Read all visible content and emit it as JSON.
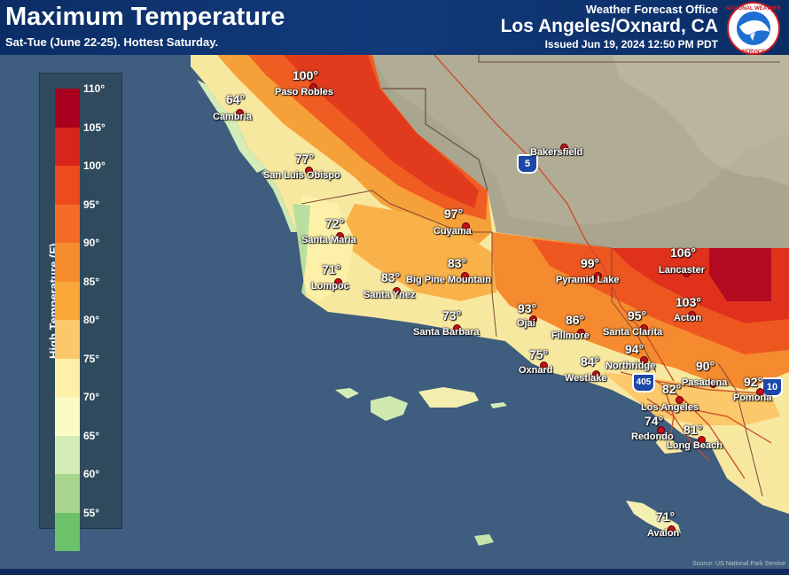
{
  "header": {
    "title": "Maximum Temperature",
    "subtitle": "Sat-Tue (June 22-25). Hottest Saturday.",
    "office_small": "Weather Forecast Office",
    "office_big": "Los Angeles/Oxnard, CA",
    "issued": "Issued Jun 19, 2024 12:50 PM PDT",
    "logo_text": "NATIONAL WEATHER SERVICE"
  },
  "legend": {
    "title": "High Temperature (F)",
    "ticks": [
      "110°",
      "105°",
      "100°",
      "95°",
      "90°",
      "85°",
      "80°",
      "75°",
      "70°",
      "65°",
      "60°",
      "55°"
    ],
    "colors": [
      "#a8001e",
      "#d9241c",
      "#ee4a1c",
      "#f46c28",
      "#f78c2c",
      "#f9a93a",
      "#fbc86a",
      "#fdf0a8",
      "#fbfbc6",
      "#d4ecb8",
      "#a8d68e",
      "#6cc26a"
    ]
  },
  "cities": [
    {
      "name": "Cambria",
      "temp": "64°"
    },
    {
      "name": "Paso Robles",
      "temp": "100°"
    },
    {
      "name": "San Luis Obispo",
      "temp": "77°"
    },
    {
      "name": "Santa Maria",
      "temp": "72°"
    },
    {
      "name": "Lompoc",
      "temp": "71°"
    },
    {
      "name": "Cuyama",
      "temp": "97°"
    },
    {
      "name": "Santa Ynez",
      "temp": "83°"
    },
    {
      "name": "Big Pine Mountain",
      "temp": "83°"
    },
    {
      "name": "Santa Barbara",
      "temp": "73°"
    },
    {
      "name": "Ojai",
      "temp": "93°"
    },
    {
      "name": "Pyramid Lake",
      "temp": "99°"
    },
    {
      "name": "Fillmore",
      "temp": "86°"
    },
    {
      "name": "Lancaster",
      "temp": "106°"
    },
    {
      "name": "Acton",
      "temp": "103°"
    },
    {
      "name": "Santa Clarita",
      "temp": "95°"
    },
    {
      "name": "Oxnard",
      "temp": "75°"
    },
    {
      "name": "Westlake",
      "temp": "84°"
    },
    {
      "name": "Northridge",
      "temp": "94°"
    },
    {
      "name": "Pasadena",
      "temp": "90°"
    },
    {
      "name": "Los Angeles",
      "temp": "82°"
    },
    {
      "name": "Pomona",
      "temp": "92°"
    },
    {
      "name": "Redondo",
      "temp": "74°"
    },
    {
      "name": "Long Beach",
      "temp": "81°"
    },
    {
      "name": "Avalon",
      "temp": "71°"
    },
    {
      "name": "Bakersfield",
      "temp": ""
    }
  ],
  "highways": [
    "5",
    "405",
    "10"
  ],
  "credit": "Source: US National Park Service"
}
